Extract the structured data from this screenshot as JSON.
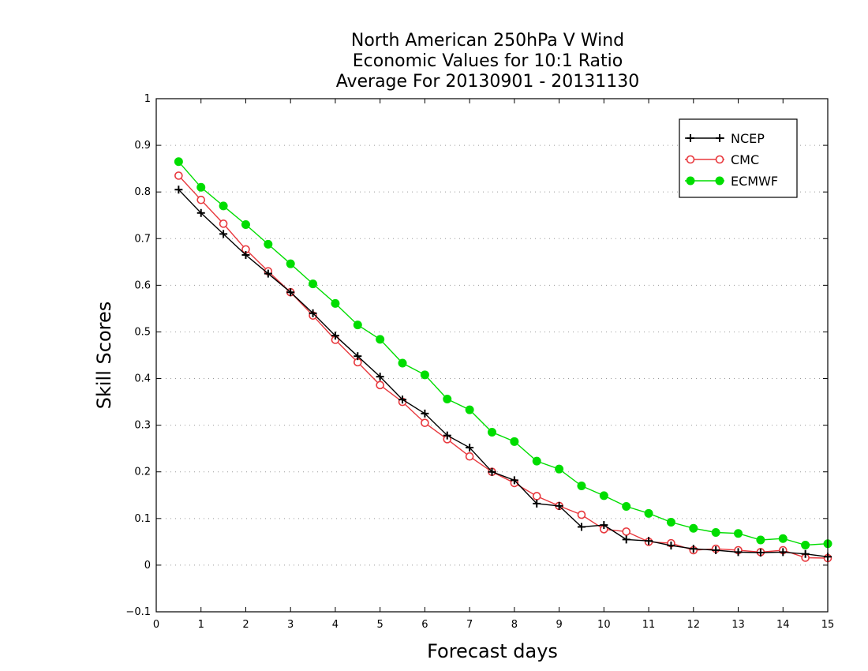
{
  "chart_data": {
    "type": "line",
    "title_lines": [
      "North American 250hPa V Wind",
      "Economic Values for 10:1 Ratio",
      "Average For 20130901 - 20131130"
    ],
    "xlabel": "Forecast days",
    "ylabel": "Skill Scores",
    "xlim": [
      0,
      15
    ],
    "ylim": [
      -0.1,
      1
    ],
    "xticks": [
      "0",
      "1",
      "2",
      "3",
      "4",
      "5",
      "6",
      "7",
      "8",
      "9",
      "10",
      "11",
      "12",
      "13",
      "14",
      "15"
    ],
    "yticks": [
      "−0.1",
      "0",
      "0.1",
      "0.2",
      "0.3",
      "0.4",
      "0.5",
      "0.6",
      "0.7",
      "0.8",
      "0.9",
      "1"
    ],
    "grid": true,
    "legend_position": "top-right",
    "x": [
      0.5,
      1,
      1.5,
      2,
      2.5,
      3,
      3.5,
      4,
      4.5,
      5,
      5.5,
      6,
      6.5,
      7,
      7.5,
      8,
      8.5,
      9,
      9.5,
      10,
      10.5,
      11,
      11.5,
      12,
      12.5,
      13,
      13.5,
      14,
      14.5,
      15
    ],
    "series": [
      {
        "name": "NCEP",
        "color": "#000000",
        "marker": "plus",
        "values": [
          0.805,
          0.755,
          0.71,
          0.665,
          0.625,
          0.585,
          0.54,
          0.492,
          0.448,
          0.404,
          0.355,
          0.325,
          0.278,
          0.252,
          0.2,
          0.182,
          0.132,
          0.127,
          0.082,
          0.086,
          0.055,
          0.052,
          0.042,
          0.035,
          0.032,
          0.028,
          0.027,
          0.028,
          0.024,
          0.018
        ]
      },
      {
        "name": "CMC",
        "color": "#e8383d",
        "marker": "open-circle",
        "values": [
          0.835,
          0.783,
          0.732,
          0.677,
          0.63,
          0.585,
          0.535,
          0.483,
          0.435,
          0.386,
          0.35,
          0.305,
          0.27,
          0.233,
          0.2,
          0.176,
          0.148,
          0.127,
          0.108,
          0.077,
          0.072,
          0.05,
          0.047,
          0.032,
          0.035,
          0.032,
          0.028,
          0.032,
          0.016,
          0.015
        ]
      },
      {
        "name": "ECMWF",
        "color": "#00dd00",
        "marker": "filled-circle",
        "values": [
          0.865,
          0.81,
          0.77,
          0.73,
          0.688,
          0.646,
          0.603,
          0.561,
          0.515,
          0.484,
          0.433,
          0.408,
          0.356,
          0.333,
          0.285,
          0.265,
          0.223,
          0.206,
          0.17,
          0.149,
          0.126,
          0.111,
          0.092,
          0.079,
          0.07,
          0.068,
          0.054,
          0.057,
          0.043,
          0.046
        ]
      }
    ]
  }
}
